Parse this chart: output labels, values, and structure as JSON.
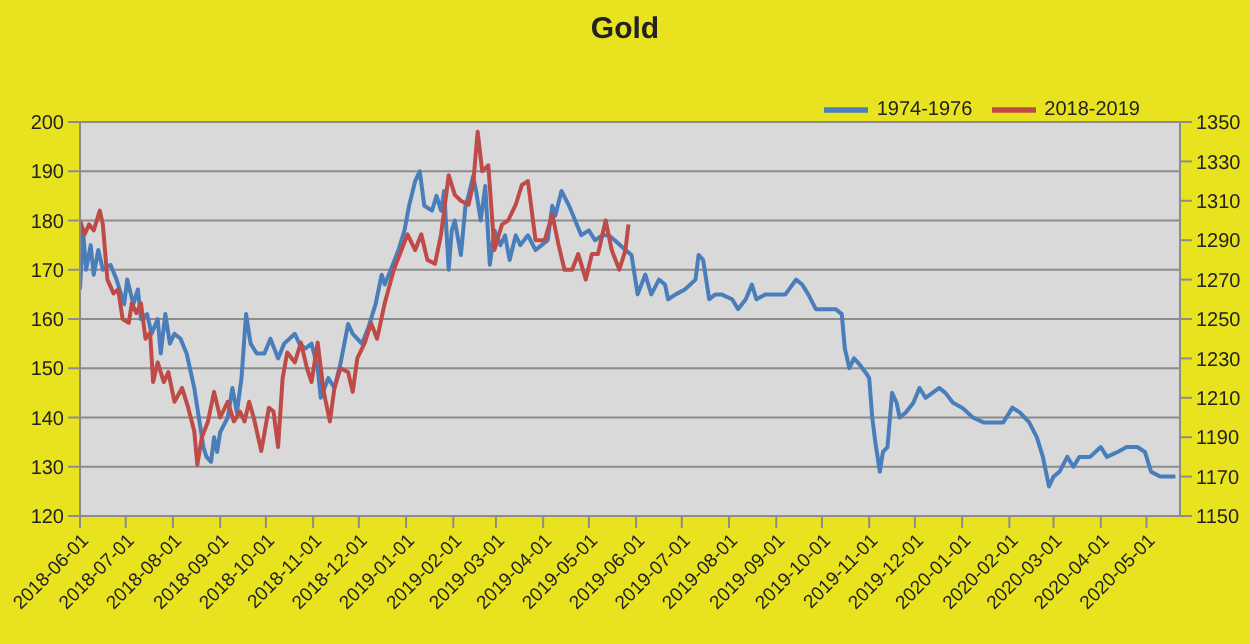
{
  "chart_data": {
    "type": "line",
    "title": "Gold",
    "legend": "top right",
    "grid": "y",
    "xlim": [
      "2018-06-01",
      "2020-05-23"
    ],
    "xticks": [
      "2018-06-01",
      "2018-07-01",
      "2018-08-01",
      "2018-09-01",
      "2018-10-01",
      "2018-11-01",
      "2018-12-01",
      "2019-01-01",
      "2019-02-01",
      "2019-03-01",
      "2019-04-01",
      "2019-05-01",
      "2019-06-01",
      "2019-07-01",
      "2019-08-01",
      "2019-09-01",
      "2019-10-01",
      "2019-11-01",
      "2019-12-01",
      "2020-01-01",
      "2020-02-01",
      "2020-03-01",
      "2020-04-01",
      "2020-05-01"
    ],
    "ylim": [
      120,
      200
    ],
    "yticks": [
      120,
      130,
      140,
      150,
      160,
      170,
      180,
      190,
      200
    ],
    "y2lim": [
      1150,
      1350
    ],
    "y2ticks": [
      1150,
      1170,
      1190,
      1210,
      1230,
      1250,
      1270,
      1290,
      1310,
      1330,
      1350
    ],
    "series": [
      {
        "name": "1974-1976",
        "color": "#4a7ebb",
        "x": [
          "2018-06-01",
          "2018-06-03",
          "2018-06-05",
          "2018-06-08",
          "2018-06-10",
          "2018-06-13",
          "2018-06-16",
          "2018-06-21",
          "2018-06-25",
          "2018-06-30",
          "2018-07-02",
          "2018-07-06",
          "2018-07-09",
          "2018-07-11",
          "2018-07-15",
          "2018-07-18",
          "2018-07-22",
          "2018-07-24",
          "2018-07-27",
          "2018-07-30",
          "2018-08-02",
          "2018-08-06",
          "2018-08-10",
          "2018-08-15",
          "2018-08-19",
          "2018-08-21",
          "2018-08-23",
          "2018-08-26",
          "2018-08-28",
          "2018-08-30",
          "2018-09-01",
          "2018-09-06",
          "2018-09-09",
          "2018-09-12",
          "2018-09-15",
          "2018-09-18",
          "2018-09-21",
          "2018-09-25",
          "2018-09-30",
          "2018-10-04",
          "2018-10-09",
          "2018-10-13",
          "2018-10-20",
          "2018-10-23",
          "2018-10-27",
          "2018-10-31",
          "2018-11-04",
          "2018-11-06",
          "2018-11-11",
          "2018-11-15",
          "2018-11-19",
          "2018-11-24",
          "2018-11-27",
          "2018-12-03",
          "2018-12-07",
          "2018-12-12",
          "2018-12-16",
          "2018-12-18",
          "2018-12-22",
          "2018-12-27",
          "2018-12-31",
          "2019-01-03",
          "2019-01-07",
          "2019-01-10",
          "2019-01-13",
          "2019-01-18",
          "2019-01-21",
          "2019-01-24",
          "2019-01-26",
          "2019-01-29",
          "2019-01-31",
          "2019-02-02",
          "2019-02-06",
          "2019-02-09",
          "2019-02-11",
          "2019-02-14",
          "2019-02-16",
          "2019-02-19",
          "2019-02-22",
          "2019-02-25",
          "2019-02-28",
          "2019-03-04",
          "2019-03-07",
          "2019-03-10",
          "2019-03-14",
          "2019-03-17",
          "2019-03-22",
          "2019-03-27",
          "2019-03-31",
          "2019-04-04",
          "2019-04-07",
          "2019-04-09",
          "2019-04-13",
          "2019-04-18",
          "2019-04-22",
          "2019-04-26",
          "2019-05-01",
          "2019-05-05",
          "2019-05-10",
          "2019-05-14",
          "2019-05-18",
          "2019-05-25",
          "2019-05-29",
          "2019-06-02",
          "2019-06-07",
          "2019-06-11",
          "2019-06-16",
          "2019-06-20",
          "2019-06-22",
          "2019-06-27",
          "2019-07-03",
          "2019-07-10",
          "2019-07-12",
          "2019-07-15",
          "2019-07-19",
          "2019-07-23",
          "2019-07-27",
          "2019-08-03",
          "2019-08-07",
          "2019-08-12",
          "2019-08-16",
          "2019-08-19",
          "2019-08-25",
          "2019-09-03",
          "2019-09-07",
          "2019-09-14",
          "2019-09-18",
          "2019-09-22",
          "2019-09-27",
          "2019-10-03",
          "2019-10-10",
          "2019-10-14",
          "2019-10-16",
          "2019-10-19",
          "2019-10-22",
          "2019-10-25",
          "2019-10-30",
          "2019-11-01",
          "2019-11-03",
          "2019-11-05",
          "2019-11-08",
          "2019-11-10",
          "2019-11-13",
          "2019-11-16",
          "2019-11-19",
          "2019-11-21",
          "2019-11-25",
          "2019-11-30",
          "2019-12-04",
          "2019-12-08",
          "2019-12-17",
          "2019-12-21",
          "2019-12-26",
          "2020-01-01",
          "2020-01-08",
          "2020-01-15",
          "2020-01-21",
          "2020-01-28",
          "2020-02-03",
          "2020-02-08",
          "2020-02-14",
          "2020-02-19",
          "2020-02-23",
          "2020-02-27",
          "2020-03-01",
          "2020-03-05",
          "2020-03-10",
          "2020-03-14",
          "2020-03-18",
          "2020-03-25",
          "2020-04-01",
          "2020-04-05",
          "2020-04-12",
          "2020-04-18",
          "2020-04-25",
          "2020-04-30",
          "2020-05-04",
          "2020-05-10",
          "2020-05-17",
          "2020-05-20"
        ],
        "values": [
          166,
          178,
          170,
          175,
          169,
          174,
          170,
          171,
          168,
          163,
          168,
          163,
          166,
          160,
          161,
          157,
          160,
          153,
          161,
          155,
          157,
          156,
          153,
          146,
          138,
          134,
          132,
          131,
          136,
          133,
          137,
          140,
          146,
          141,
          148,
          161,
          155,
          153,
          153,
          156,
          152,
          155,
          157,
          155,
          154,
          155,
          150,
          144,
          148,
          146,
          151,
          159,
          157,
          155,
          158,
          163,
          169,
          167,
          170,
          174,
          178,
          183,
          188,
          190,
          183,
          182,
          185,
          182,
          186,
          170,
          178,
          180,
          173,
          183,
          185,
          189,
          186,
          180,
          187,
          171,
          178,
          175,
          177,
          172,
          177,
          175,
          177,
          174,
          175,
          176,
          183,
          181,
          186,
          183,
          180,
          177,
          178,
          176,
          177,
          177,
          176,
          174,
          173,
          165,
          169,
          165,
          168,
          167,
          164,
          165,
          166,
          168,
          173,
          172,
          164,
          165,
          165,
          164,
          162,
          164,
          167,
          164,
          165,
          165,
          165,
          168,
          167,
          165,
          162,
          162,
          162,
          161,
          154,
          150,
          152,
          151,
          149,
          148,
          140,
          135,
          129,
          133,
          134,
          145,
          143,
          140,
          141,
          143,
          146,
          144,
          146,
          145,
          143,
          142,
          140,
          139,
          139,
          139,
          142,
          141,
          139,
          136,
          132,
          126,
          128,
          129,
          132,
          130,
          132,
          132,
          134,
          132,
          133,
          134,
          134,
          133,
          129,
          128,
          128,
          128
        ]
      },
      {
        "name": "2018-2019",
        "color": "#be4b48",
        "axis": "y2",
        "x": [
          "2018-06-01",
          "2018-06-04",
          "2018-06-07",
          "2018-06-10",
          "2018-06-14",
          "2018-06-16",
          "2018-06-19",
          "2018-06-23",
          "2018-06-26",
          "2018-06-29",
          "2018-07-03",
          "2018-07-05",
          "2018-07-08",
          "2018-07-11",
          "2018-07-14",
          "2018-07-17",
          "2018-07-19",
          "2018-07-22",
          "2018-07-26",
          "2018-07-29",
          "2018-08-02",
          "2018-08-07",
          "2018-08-11",
          "2018-08-15",
          "2018-08-17",
          "2018-08-20",
          "2018-08-24",
          "2018-08-28",
          "2018-09-01",
          "2018-09-06",
          "2018-09-10",
          "2018-09-14",
          "2018-09-17",
          "2018-09-20",
          "2018-09-23",
          "2018-09-28",
          "2018-10-03",
          "2018-10-06",
          "2018-10-09",
          "2018-10-12",
          "2018-10-15",
          "2018-10-20",
          "2018-10-24",
          "2018-10-28",
          "2018-10-31",
          "2018-11-04",
          "2018-11-08",
          "2018-11-12",
          "2018-11-15",
          "2018-11-19",
          "2018-11-24",
          "2018-11-27",
          "2018-11-30",
          "2018-12-05",
          "2018-12-09",
          "2018-12-13",
          "2018-12-18",
          "2018-12-24",
          "2018-12-29",
          "2019-01-02",
          "2019-01-07",
          "2019-01-11",
          "2019-01-15",
          "2019-01-20",
          "2019-01-24",
          "2019-01-29",
          "2019-02-02",
          "2019-02-06",
          "2019-02-11",
          "2019-02-14",
          "2019-02-17",
          "2019-02-20",
          "2019-02-24",
          "2019-02-28",
          "2019-03-05",
          "2019-03-09",
          "2019-03-14",
          "2019-03-18",
          "2019-03-22",
          "2019-03-27",
          "2019-04-02",
          "2019-04-07",
          "2019-04-11",
          "2019-04-15",
          "2019-04-20",
          "2019-04-24",
          "2019-04-29",
          "2019-05-03",
          "2019-05-07",
          "2019-05-12",
          "2019-05-16",
          "2019-05-21",
          "2019-05-25",
          "2019-05-27"
        ],
        "values": [
          1300,
          1293,
          1298,
          1295,
          1305,
          1298,
          1270,
          1263,
          1265,
          1250,
          1248,
          1258,
          1253,
          1258,
          1240,
          1243,
          1218,
          1228,
          1218,
          1223,
          1208,
          1215,
          1205,
          1193,
          1176,
          1190,
          1198,
          1213,
          1200,
          1208,
          1198,
          1203,
          1198,
          1208,
          1200,
          1183,
          1205,
          1203,
          1185,
          1220,
          1233,
          1228,
          1238,
          1225,
          1218,
          1238,
          1213,
          1198,
          1215,
          1225,
          1223,
          1213,
          1230,
          1238,
          1248,
          1240,
          1258,
          1275,
          1285,
          1293,
          1285,
          1293,
          1280,
          1278,
          1293,
          1323,
          1313,
          1310,
          1308,
          1318,
          1345,
          1325,
          1328,
          1285,
          1298,
          1300,
          1308,
          1318,
          1320,
          1290,
          1290,
          1303,
          1288,
          1275,
          1275,
          1283,
          1270,
          1283,
          1283,
          1300,
          1285,
          1275,
          1285,
          1298
        ]
      }
    ]
  }
}
